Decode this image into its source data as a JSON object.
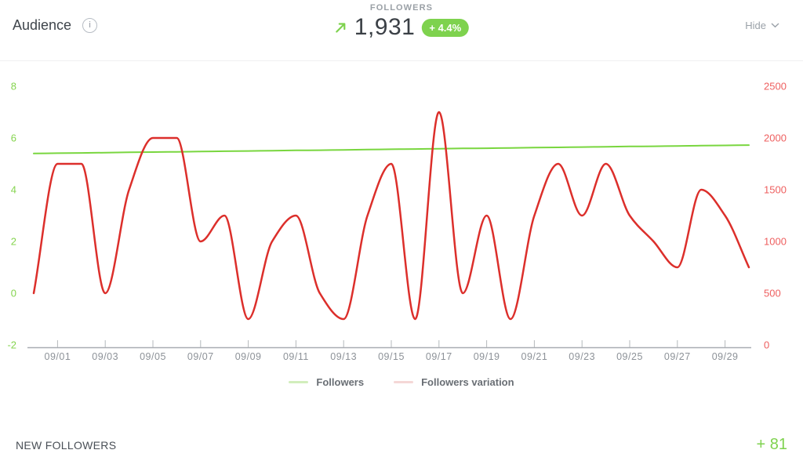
{
  "header": {
    "title": "Audience",
    "info_glyph": "i",
    "metric_label": "FOLLOWERS",
    "metric_value": "1,931",
    "metric_delta": "+ 4.4%",
    "hide_label": "Hide"
  },
  "footer": {
    "label": "NEW FOLLOWERS",
    "value": "+ 81"
  },
  "colors": {
    "accent_green": "#7ed24e",
    "line_green": "#79d63f",
    "line_red": "#dc2f2b",
    "left_axis_green": "#85d44f",
    "right_axis_red": "#ee5f5f",
    "x_label_gray": "#8d9298",
    "axis_gray": "#a9adb2"
  },
  "chart_data": {
    "type": "line",
    "title": "",
    "x": [
      "08/31",
      "09/01",
      "09/02",
      "09/03",
      "09/04",
      "09/05",
      "09/06",
      "09/07",
      "09/08",
      "09/09",
      "09/10",
      "09/11",
      "09/12",
      "09/13",
      "09/14",
      "09/15",
      "09/16",
      "09/17",
      "09/18",
      "09/19",
      "09/20",
      "09/21",
      "09/22",
      "09/23",
      "09/24",
      "09/25",
      "09/26",
      "09/27",
      "09/28",
      "09/29",
      "09/30"
    ],
    "x_tick_labels": [
      "09/01",
      "09/03",
      "09/05",
      "09/07",
      "09/09",
      "09/11",
      "09/13",
      "09/15",
      "09/17",
      "09/19",
      "09/21",
      "09/23",
      "09/25",
      "09/27",
      "09/29"
    ],
    "left_axis": {
      "ticks": [
        8,
        6,
        4,
        2,
        0,
        -2
      ],
      "range": [
        -2,
        8
      ],
      "color": "#85d44f"
    },
    "right_axis": {
      "ticks": [
        2500,
        2000,
        1500,
        1000,
        500,
        0
      ],
      "range": [
        0,
        2500
      ],
      "color": "#ee5f5f"
    },
    "series": [
      {
        "name": "Followers",
        "axis": "right",
        "color": "#79d63f",
        "width": 2,
        "values": [
          1850,
          1853,
          1855,
          1858,
          1861,
          1864,
          1866,
          1869,
          1872,
          1874,
          1877,
          1880,
          1882,
          1885,
          1888,
          1891,
          1893,
          1896,
          1899,
          1901,
          1904,
          1907,
          1909,
          1912,
          1915,
          1918,
          1920,
          1923,
          1926,
          1928,
          1931
        ]
      },
      {
        "name": "Followers variation",
        "axis": "left",
        "color": "#dc2f2b",
        "width": 2.5,
        "values": [
          0,
          5,
          5,
          0,
          4,
          6,
          6,
          2,
          3,
          -1,
          2,
          3,
          0,
          -1,
          3,
          5,
          -1,
          7,
          0,
          3,
          -1,
          3,
          5,
          3,
          5,
          3,
          2,
          1,
          4,
          3,
          1
        ]
      }
    ],
    "legend": [
      {
        "label": "Followers",
        "swatch": "#d2eebc"
      },
      {
        "label": "Followers variation",
        "swatch": "#f5d7d6"
      }
    ],
    "grid": false,
    "legend_position": "bottom"
  }
}
